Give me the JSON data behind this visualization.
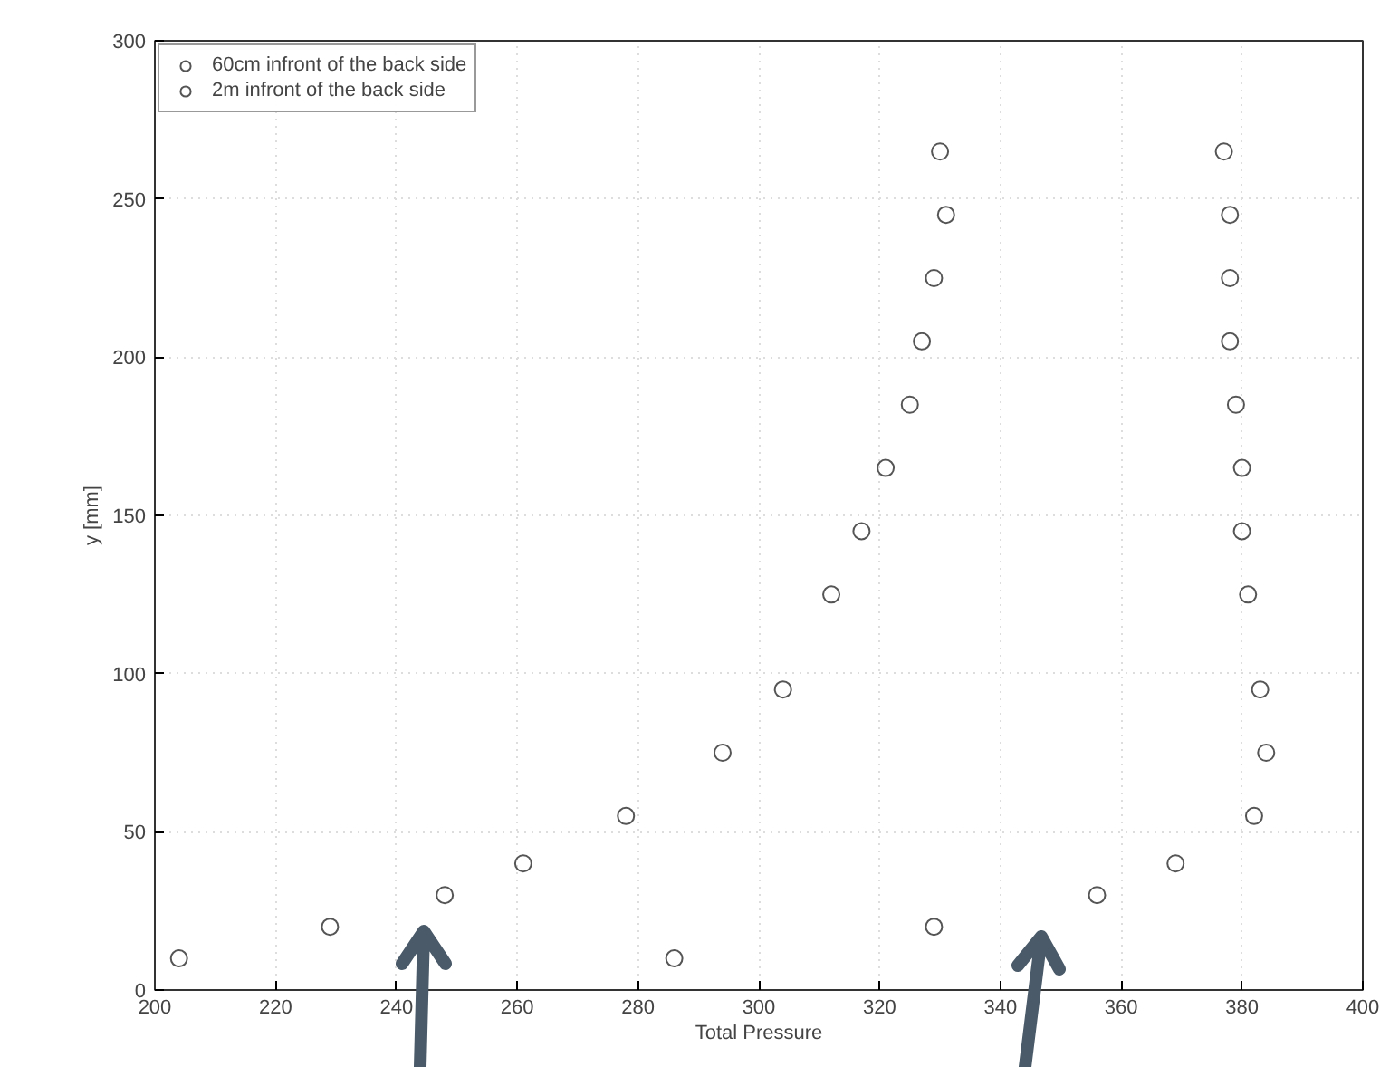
{
  "chart_data": {
    "type": "scatter",
    "xlabel": "Total Pressure",
    "ylabel": "y [mm]",
    "xlim": [
      200,
      400
    ],
    "ylim": [
      0,
      300
    ],
    "xticks": [
      200,
      220,
      240,
      260,
      280,
      300,
      320,
      340,
      360,
      380,
      400
    ],
    "yticks": [
      0,
      50,
      100,
      150,
      200,
      250,
      300
    ],
    "grid": true,
    "legend": "top left",
    "marker": "circle",
    "series": [
      {
        "name": "60cm infront of the back side",
        "color": "#555555",
        "x": [
          204,
          229,
          248,
          261,
          278,
          294,
          304,
          312,
          317,
          321,
          325,
          327,
          329,
          331,
          330
        ],
        "values": [
          10,
          20,
          30,
          40,
          55,
          75,
          95,
          125,
          145,
          165,
          185,
          205,
          225,
          245,
          265
        ]
      },
      {
        "name": "2m infront of the back side",
        "color": "#555555",
        "x": [
          286,
          329,
          356,
          369,
          382,
          384,
          383,
          381,
          380,
          380,
          379,
          378,
          378,
          378,
          377
        ],
        "values": [
          10,
          20,
          30,
          40,
          55,
          75,
          95,
          125,
          145,
          165,
          185,
          205,
          225,
          245,
          265
        ]
      }
    ]
  }
}
